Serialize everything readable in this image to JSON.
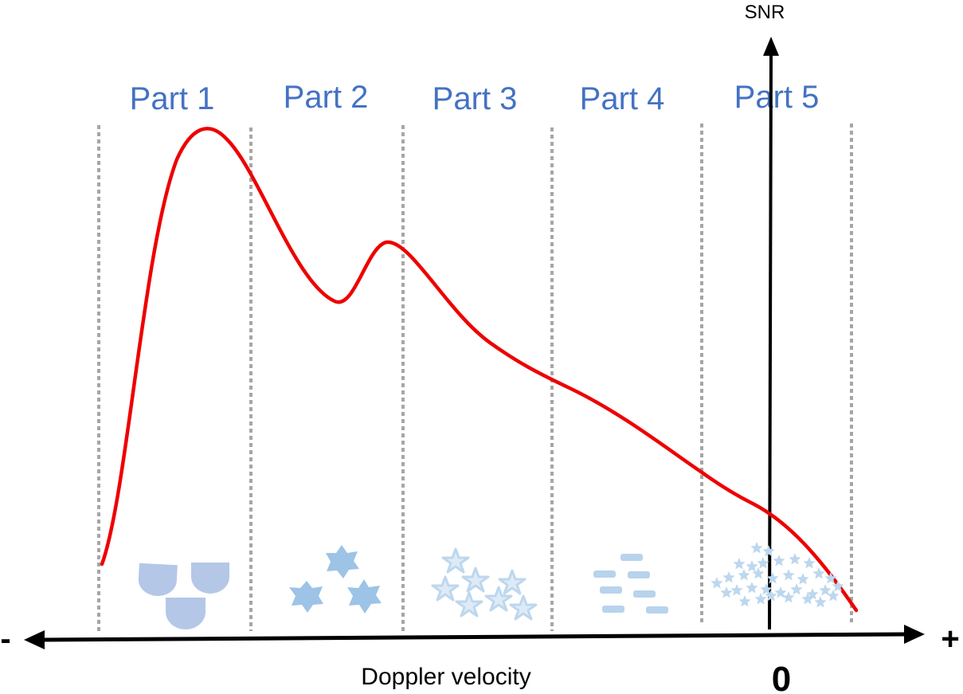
{
  "axes": {
    "y_label": "SNR",
    "x_label": "Doppler velocity",
    "x_minus": "-",
    "x_plus": "+",
    "zero_label": "0"
  },
  "parts": [
    {
      "label": "Part 1"
    },
    {
      "label": "Part 2"
    },
    {
      "label": "Part 3"
    },
    {
      "label": "Part 4"
    },
    {
      "label": "Part 5"
    }
  ],
  "colors": {
    "curve": "#ee0000",
    "part_label": "#4472c4",
    "divider": "#a6a6a6",
    "axis": "#000000",
    "icons_part1": "#b4c7e7",
    "icons_part2": "#9dc3e6",
    "icons_part3": "#bdd7ee",
    "icons_part4": "#b8d3ec",
    "icons_part5": "#bdd7ee"
  },
  "icons": [
    "hydrometeor-cup-icons",
    "hexagram-cluster-icons",
    "star-outline-icons",
    "dash-icons",
    "small-star-icons"
  ]
}
